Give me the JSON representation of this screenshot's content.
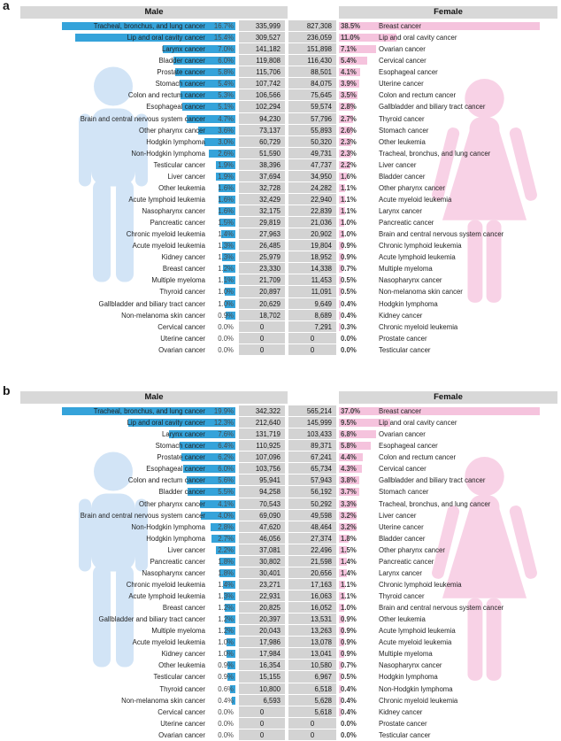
{
  "colors": {
    "male_bar": "#35a3da",
    "female_bar": "#f5c3dd",
    "count_column_bg": "#d3d3d3",
    "header_bg": "#d8d8d8",
    "male_silhouette": "#c7def4",
    "female_silhouette": "#f6c4de"
  },
  "chart_data": [
    {
      "type": "bar",
      "panel_label": "a",
      "layout": "bilateral pyramid, male bars extend left, female bars extend right, paired count columns in center",
      "male_header": "Male",
      "female_header": "Female",
      "male": {
        "labels": [
          "Tracheal, bronchus, and lung cancer",
          "Lip and oral cavity cancer",
          "Larynx cancer",
          "Bladder cancer",
          "Prostate cancer",
          "Stomach cancer",
          "Colon and rectum cancer",
          "Esophageal cancer",
          "Brain and central nervous system cancer",
          "Other pharynx cancer",
          "Hodgkin lymphoma",
          "Non-Hodgkin lymphoma",
          "Testicular cancer",
          "Liver cancer",
          "Other leukemia",
          "Acute lymphoid leukemia",
          "Nasopharynx cancer",
          "Pancreatic cancer",
          "Chronic myeloid leukemia",
          "Acute myeloid leukemia",
          "Kidney cancer",
          "Breast cancer",
          "Multiple myeloma",
          "Thyroid cancer",
          "Gallbladder and biliary tract cancer",
          "Non-melanoma skin cancer",
          "Cervical cancer",
          "Uterine cancer",
          "Ovarian cancer"
        ],
        "pct": [
          "16.7%",
          "15.4%",
          "7.0%",
          "6.0%",
          "5.8%",
          "5.4%",
          "5.3%",
          "5.1%",
          "4.7%",
          "3.6%",
          "3.0%",
          "2.6%",
          "1.9%",
          "1.9%",
          "1.6%",
          "1.6%",
          "1.6%",
          "1.5%",
          "1.4%",
          "1.3%",
          "1.3%",
          "1.2%",
          "1.1%",
          "1.0%",
          "1.0%",
          "0.9%",
          "0.0%",
          "0.0%",
          "0.0%"
        ],
        "counts": [
          "335,999",
          "309,527",
          "141,182",
          "119,808",
          "115,706",
          "107,742",
          "106,566",
          "102,294",
          "94,230",
          "73,137",
          "60,729",
          "51,590",
          "38,396",
          "37,694",
          "32,728",
          "32,429",
          "32,175",
          "29,819",
          "27,963",
          "26,485",
          "25,979",
          "23,330",
          "21,709",
          "20,897",
          "20,629",
          "18,702",
          "0",
          "0",
          "0"
        ]
      },
      "female": {
        "counts": [
          "827,308",
          "236,059",
          "151,898",
          "116,430",
          "88,501",
          "84,075",
          "75,645",
          "59,574",
          "57,796",
          "55,893",
          "50,320",
          "49,731",
          "47,737",
          "34,950",
          "24,282",
          "22,940",
          "22,839",
          "21,036",
          "20,902",
          "19,804",
          "18,952",
          "14,338",
          "11,453",
          "11,091",
          "9,649",
          "8,689",
          "7,291",
          "0",
          "0"
        ],
        "pct": [
          "38.5%",
          "11.0%",
          "7.1%",
          "5.4%",
          "4.1%",
          "3.9%",
          "3.5%",
          "2.8%",
          "2.7%",
          "2.6%",
          "2.3%",
          "2.3%",
          "2.2%",
          "1.6%",
          "1.1%",
          "1.1%",
          "1.1%",
          "1.0%",
          "1.0%",
          "0.9%",
          "0.9%",
          "0.7%",
          "0.5%",
          "0.5%",
          "0.4%",
          "0.4%",
          "0.3%",
          "0.0%",
          "0.0%"
        ],
        "labels": [
          "Breast cancer",
          "Lip and oral cavity cancer",
          "Ovarian cancer",
          "Cervical cancer",
          "Esophageal cancer",
          "Uterine cancer",
          "Colon and rectum cancer",
          "Gallbladder and biliary tract cancer",
          "Thyroid cancer",
          "Stomach cancer",
          "Other leukemia",
          "Tracheal, bronchus, and lung cancer",
          "Liver cancer",
          "Bladder cancer",
          "Other pharynx cancer",
          "Acute myeloid leukemia",
          "Larynx cancer",
          "Pancreatic cancer",
          "Brain and central nervous system cancer",
          "Chronic lymphoid leukemia",
          "Acute lymphoid leukemia",
          "Multiple myeloma",
          "Nasopharynx cancer",
          "Non-melanoma skin cancer",
          "Hodgkin lymphoma",
          "Kidney cancer",
          "Chronic myeloid leukemia",
          "Prostate cancer",
          "Testicular cancer"
        ]
      }
    },
    {
      "type": "bar",
      "panel_label": "b",
      "layout": "bilateral pyramid, male bars extend left, female bars extend right, paired count columns in center",
      "male_header": "Male",
      "female_header": "Female",
      "male": {
        "labels": [
          "Tracheal, bronchus, and lung cancer",
          "Lip and oral cavity cancer",
          "Larynx cancer",
          "Stomach cancer",
          "Prostate cancer",
          "Esophageal cancer",
          "Colon and rectum cancer",
          "Bladder cancer",
          "Other pharynx cancer",
          "Brain and central nervous system cancer",
          "Non-Hodgkin lymphoma",
          "Hodgkin lymphoma",
          "Liver cancer",
          "Pancreatic cancer",
          "Nasopharynx cancer",
          "Chronic myeloid leukemia",
          "Acute lymphoid leukemia",
          "Breast cancer",
          "Gallbladder and biliary tract cancer",
          "Multiple myeloma",
          "Acute myeloid leukemia",
          "Kidney cancer",
          "Other leukemia",
          "Testicular cancer",
          "Thyroid cancer",
          "Non-melanoma skin cancer",
          "Cervical cancer",
          "Uterine cancer",
          "Ovarian cancer"
        ],
        "pct": [
          "19.9%",
          "12.3%",
          "7.6%",
          "6.4%",
          "6.2%",
          "6.0%",
          "5.6%",
          "5.5%",
          "4.1%",
          "4.0%",
          "2.8%",
          "2.7%",
          "2.2%",
          "1.8%",
          "1.8%",
          "1.4%",
          "1.3%",
          "1.2%",
          "1.2%",
          "1.2%",
          "1.0%",
          "1.0%",
          "0.9%",
          "0.9%",
          "0.6%",
          "0.4%",
          "0.0%",
          "0.0%",
          "0.0%"
        ],
        "counts": [
          "342,322",
          "212,640",
          "131,719",
          "110,925",
          "107,096",
          "103,756",
          "95,941",
          "94,258",
          "70,543",
          "69,090",
          "47,620",
          "46,056",
          "37,081",
          "30,802",
          "30,401",
          "23,271",
          "22,931",
          "20,825",
          "20,397",
          "20,043",
          "17,986",
          "17,984",
          "16,354",
          "15,155",
          "10,800",
          "6,593",
          "0",
          "0",
          "0"
        ]
      },
      "female": {
        "counts": [
          "565,214",
          "145,999",
          "103,433",
          "89,371",
          "67,241",
          "65,734",
          "57,943",
          "56,192",
          "50,292",
          "49,598",
          "48,464",
          "27,374",
          "22,496",
          "21,598",
          "20,656",
          "17,163",
          "16,063",
          "16,052",
          "13,531",
          "13,263",
          "13,078",
          "13,041",
          "10,580",
          "6,967",
          "6,518",
          "5,628",
          "5,618",
          "0",
          "0"
        ],
        "pct": [
          "37.0%",
          "9.5%",
          "6.8%",
          "5.8%",
          "4.4%",
          "4.3%",
          "3.8%",
          "3.7%",
          "3.3%",
          "3.2%",
          "3.2%",
          "1.8%",
          "1.5%",
          "1.4%",
          "1.4%",
          "1.1%",
          "1.1%",
          "1.0%",
          "0.9%",
          "0.9%",
          "0.9%",
          "0.9%",
          "0.7%",
          "0.5%",
          "0.4%",
          "0.4%",
          "0.4%",
          "0.0%",
          "0.0%"
        ],
        "labels": [
          "Breast cancer",
          "Lip and oral cavity cancer",
          "Ovarian cancer",
          "Esophageal cancer",
          "Colon and rectum cancer",
          "Cervical cancer",
          "Gallbladder and biliary tract cancer",
          "Stomach cancer",
          "Tracheal, bronchus, and lung cancer",
          "Liver cancer",
          "Uterine cancer",
          "Bladder cancer",
          "Other pharynx cancer",
          "Pancreatic cancer",
          "Larynx cancer",
          "Chronic lymphoid leukemia",
          "Thyroid cancer",
          "Brain and central nervous system cancer",
          "Other leukemia",
          "Acute lymphoid leukemia",
          "Acute myeloid leukemia",
          "Multiple myeloma",
          "Nasopharynx cancer",
          "Hodgkin lymphoma",
          "Non-Hodgkin lymphoma",
          "Chronic myeloid leukemia",
          "Kidney cancer",
          "Prostate cancer",
          "Testicular cancer"
        ]
      }
    }
  ]
}
